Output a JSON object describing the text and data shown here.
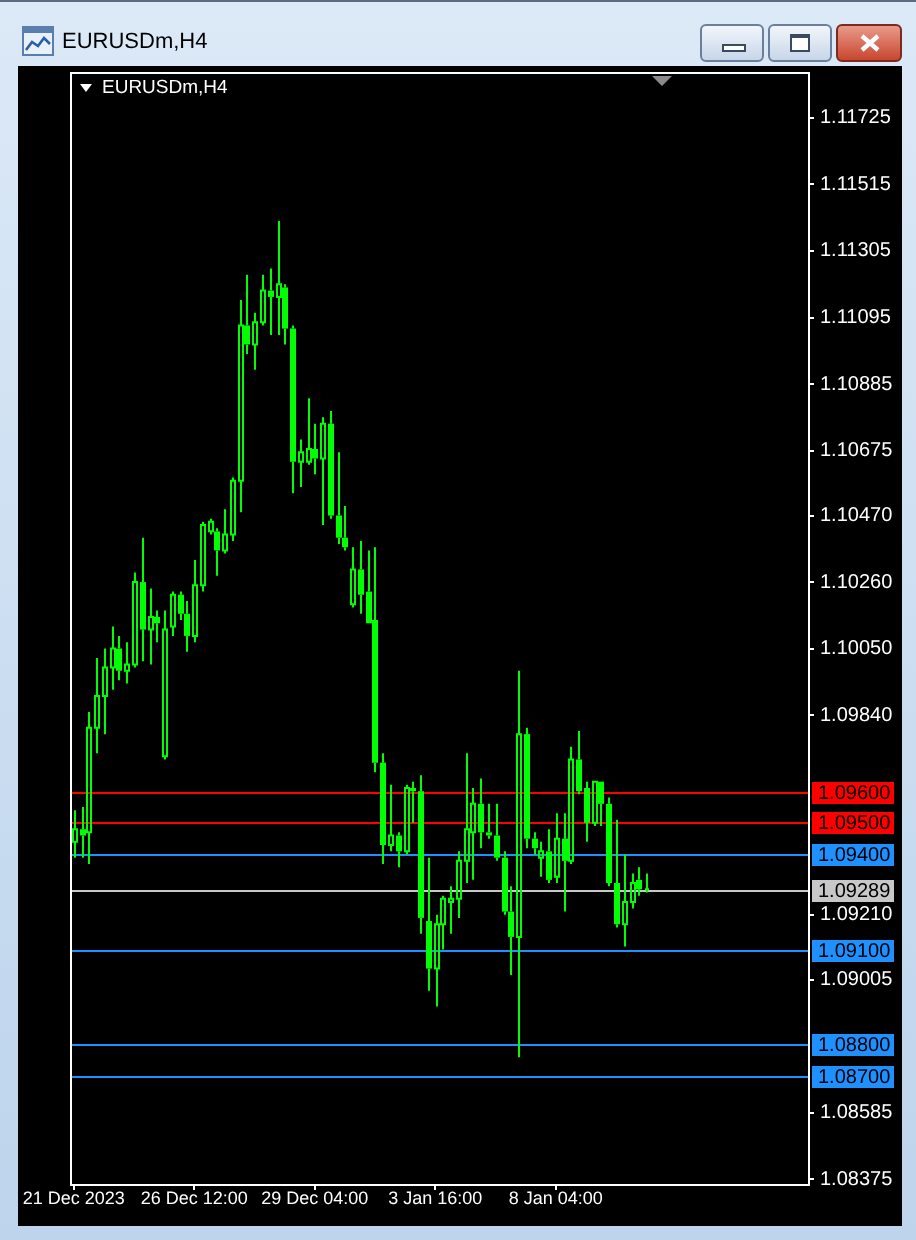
{
  "chart_data": {
    "type": "candlestick",
    "title": "EURUSDm,H4",
    "categories": [
      "21 Dec 2023",
      null,
      null,
      null,
      null,
      null,
      null,
      null,
      null,
      null,
      null,
      null,
      null,
      null,
      null,
      null,
      "26 Dec 12:00",
      null,
      null,
      null,
      null,
      null,
      null,
      null,
      null,
      null,
      null,
      null,
      null,
      null,
      null,
      null,
      "29 Dec 04:00",
      null,
      null,
      null,
      null,
      null,
      null,
      null,
      null,
      null,
      null,
      null,
      null,
      null,
      null,
      null,
      "3 Jan 16:00",
      null,
      null,
      null,
      null,
      null,
      null,
      null,
      null,
      null,
      null,
      null,
      null,
      null,
      null,
      null,
      "8 Jan 04:00",
      null,
      null,
      null,
      null,
      null,
      null,
      null,
      null,
      null,
      null,
      null,
      null,
      null,
      null,
      null,
      null,
      null,
      null,
      null,
      null,
      null,
      null,
      null,
      null,
      null,
      null,
      null,
      null,
      null,
      null,
      null,
      null,
      null
    ],
    "ohlc": [
      [
        1.0944,
        1.0954,
        1.0939,
        1.0948
      ],
      [
        1.0948,
        1.0955,
        1.0939,
        1.0946
      ],
      [
        1.0947,
        1.0985,
        1.0937,
        1.098
      ],
      [
        1.098,
        1.1002,
        1.0972,
        1.099
      ],
      [
        1.099,
        1.1005,
        1.0978,
        1.0999
      ],
      [
        1.0999,
        1.1012,
        1.0992,
        1.1005
      ],
      [
        1.1005,
        1.1009,
        1.0995,
        1.0998
      ],
      [
        1.0998,
        1.1007,
        1.0994,
        1.1
      ],
      [
        1.1,
        1.1029,
        1.0999,
        1.1026
      ],
      [
        1.1026,
        1.104,
        1.1001,
        1.1011
      ],
      [
        1.1011,
        1.1024,
        1.1,
        1.1015
      ],
      [
        1.1015,
        1.1017,
        1.1007,
        1.1013
      ],
      [
        1.0971,
        1.1017,
        1.097,
        1.1011
      ],
      [
        1.1012,
        1.1023,
        1.1009,
        1.1022
      ],
      [
        1.1022,
        1.1023,
        1.1014,
        1.1016
      ],
      [
        1.1016,
        1.102,
        1.1004,
        1.1009
      ],
      [
        1.1009,
        1.1033,
        1.1007,
        1.1025
      ],
      [
        1.1025,
        1.1045,
        1.1023,
        1.1044
      ],
      [
        1.1042,
        1.1046,
        1.1041,
        1.1045
      ],
      [
        1.1042,
        1.1043,
        1.1028,
        1.1036
      ],
      [
        1.1036,
        1.1049,
        1.1035,
        1.1041
      ],
      [
        1.1041,
        1.1059,
        1.1039,
        1.1058
      ],
      [
        1.1058,
        1.1115,
        1.1048,
        1.1107
      ],
      [
        1.1107,
        1.1123,
        1.1098,
        1.1101
      ],
      [
        1.1101,
        1.1111,
        1.1093,
        1.1108
      ],
      [
        1.1108,
        1.1123,
        1.1107,
        1.1118
      ],
      [
        1.1118,
        1.1125,
        1.1104,
        1.1116
      ],
      [
        1.1116,
        1.114,
        1.1104,
        1.112
      ],
      [
        1.1119,
        1.112,
        1.1101,
        1.1106
      ],
      [
        1.1106,
        1.1107,
        1.1054,
        1.1064
      ],
      [
        1.1064,
        1.1071,
        1.1056,
        1.1067
      ],
      [
        1.1064,
        1.1084,
        1.1063,
        1.1068
      ],
      [
        1.1068,
        1.1076,
        1.106,
        1.1065
      ],
      [
        1.1065,
        1.1078,
        1.1044,
        1.1076
      ],
      [
        1.1076,
        1.108,
        1.1046,
        1.1047
      ],
      [
        1.1047,
        1.1067,
        1.1038,
        1.104
      ],
      [
        1.104,
        1.105,
        1.1036,
        1.1037
      ],
      [
        1.1019,
        1.1037,
        1.1018,
        1.103
      ],
      [
        1.103,
        1.1039,
        1.1016,
        1.1022
      ],
      [
        1.1023,
        1.1036,
        1.1013,
        1.1013
      ],
      [
        1.1014,
        1.1037,
        1.0966,
        1.0969
      ],
      [
        1.0969,
        1.0972,
        1.0937,
        1.0943
      ],
      [
        1.0943,
        1.0962,
        1.0941,
        1.0946
      ],
      [
        1.0946,
        1.0947,
        1.0936,
        1.0941
      ],
      [
        1.0941,
        1.0962,
        1.094,
        1.0961
      ],
      [
        1.0961,
        1.0963,
        1.095,
        1.096
      ],
      [
        1.096,
        1.0965,
        1.0915,
        1.092
      ],
      [
        1.0919,
        1.0939,
        1.0897,
        1.0904
      ],
      [
        1.0904,
        1.0921,
        1.0892,
        1.0918
      ],
      [
        1.0918,
        1.0927,
        1.091,
        1.0926
      ],
      [
        1.0925,
        1.093,
        1.0915,
        1.0926
      ],
      [
        1.0926,
        1.0941,
        1.092,
        1.0938
      ],
      [
        1.0938,
        1.0972,
        1.0931,
        1.0948
      ],
      [
        1.0947,
        1.0961,
        1.0932,
        1.0956
      ],
      [
        1.0956,
        1.0964,
        1.0942,
        1.0947
      ],
      [
        1.0947,
        1.0956,
        1.0945,
        1.0946
      ],
      [
        1.0946,
        1.0956,
        1.0938,
        1.0939
      ],
      [
        1.0939,
        1.0941,
        1.0921,
        1.0922
      ],
      [
        1.0922,
        1.093,
        1.0902,
        1.0914
      ],
      [
        1.0914,
        1.0998,
        1.0876,
        1.0978
      ],
      [
        1.0978,
        1.098,
        1.0942,
        1.0945
      ],
      [
        1.0945,
        1.0947,
        1.094,
        1.0942
      ],
      [
        1.0939,
        1.0944,
        1.0933,
        1.0941
      ],
      [
        1.0941,
        1.0948,
        1.0931,
        1.0932
      ],
      [
        1.0933,
        1.0953,
        1.0931,
        1.0945
      ],
      [
        1.0945,
        1.0953,
        1.0922,
        1.0938
      ],
      [
        1.0938,
        1.0974,
        1.0937,
        1.097
      ],
      [
        1.097,
        1.0979,
        1.0959,
        1.096
      ],
      [
        1.0961,
        1.0963,
        1.0944,
        1.095
      ],
      [
        1.095,
        1.0963,
        1.0949,
        1.0963
      ],
      [
        1.0963,
        1.0963,
        1.0949,
        1.0956
      ],
      [
        1.0956,
        1.0958,
        1.093,
        1.0931
      ],
      [
        1.0931,
        1.0951,
        1.0917,
        1.0918
      ],
      [
        1.0918,
        1.094,
        1.0911,
        1.0925
      ],
      [
        1.0925,
        1.0934,
        1.0923,
        1.0931
      ],
      [
        1.0932,
        1.0936,
        1.0927,
        1.0929
      ],
      [
        1.0929,
        1.0934,
        1.0928,
        1.0929
      ],
      null,
      null,
      null,
      null,
      null,
      null,
      null,
      null,
      null,
      null,
      null,
      null,
      null,
      null,
      null,
      null,
      null,
      null,
      null,
      null,
      null
    ],
    "color": "#00ff00",
    "ylim": [
      1.0836,
      1.1187
    ],
    "yticks": [
      1.08375,
      1.08585,
      1.09005,
      {
        "value": 1.0921,
        "label": "1.09210"
      },
      {
        "value": 1.0984,
        "label": "1.09840"
      },
      {
        "value": 1.1005,
        "label": "1.10050"
      },
      {
        "value": 1.1026,
        "label": "1.10260"
      },
      {
        "value": 1.1047,
        "label": "1.10470"
      },
      1.10675,
      1.10885,
      1.11095,
      1.11305,
      1.11515,
      1.11725
    ],
    "ref_lines": [
      {
        "axis": "y",
        "value": 1.096,
        "label": "1.09600",
        "color": "#ff0000"
      },
      {
        "axis": "y",
        "value": 1.095,
        "label": "1.09500",
        "color": "#ff0000"
      },
      {
        "axis": "y",
        "value": 1.094,
        "label": "1.09400",
        "color": "#1e90ff"
      },
      {
        "axis": "y",
        "value": 1.09289,
        "label": "1.09289",
        "color": "#c8c8c8"
      },
      {
        "axis": "y",
        "value": 1.091,
        "label": "1.09100",
        "color": "#1e90ff"
      },
      {
        "axis": "y",
        "value": 1.088,
        "label": "1.08800",
        "color": "#1e90ff"
      },
      {
        "axis": "y",
        "value": 1.087,
        "label": "1.08700",
        "color": "#1e90ff"
      }
    ]
  }
}
